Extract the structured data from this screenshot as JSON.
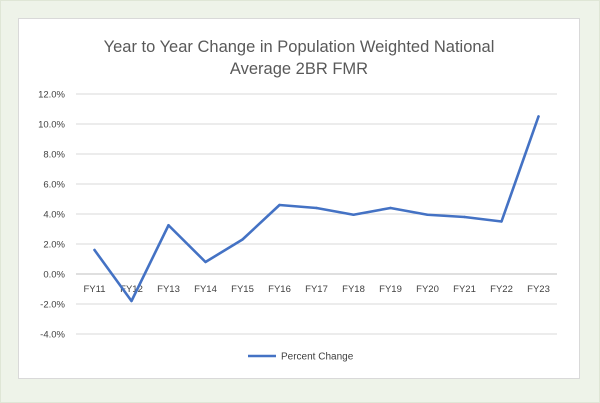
{
  "chart_data": {
    "type": "line",
    "title_line1": "Year to Year Change in Population Weighted National",
    "title_line2": "Average 2BR FMR",
    "categories": [
      "FY11",
      "FY12",
      "FY13",
      "FY14",
      "FY15",
      "FY16",
      "FY17",
      "FY18",
      "FY19",
      "FY20",
      "FY21",
      "FY22",
      "FY23"
    ],
    "series": [
      {
        "name": "Percent Change",
        "values": [
          1.6,
          -1.8,
          3.25,
          0.8,
          2.3,
          4.6,
          4.4,
          3.95,
          4.4,
          3.95,
          3.8,
          3.5,
          10.5
        ],
        "color": "#4472c4"
      }
    ],
    "y_ticks": [
      "12.0%",
      "10.0%",
      "8.0%",
      "6.0%",
      "4.0%",
      "2.0%",
      "0.0%",
      "-2.0%",
      "-4.0%"
    ],
    "ylim": [
      -4,
      12
    ],
    "grid": true,
    "legend_position": "bottom",
    "xlabel": "",
    "ylabel": ""
  }
}
